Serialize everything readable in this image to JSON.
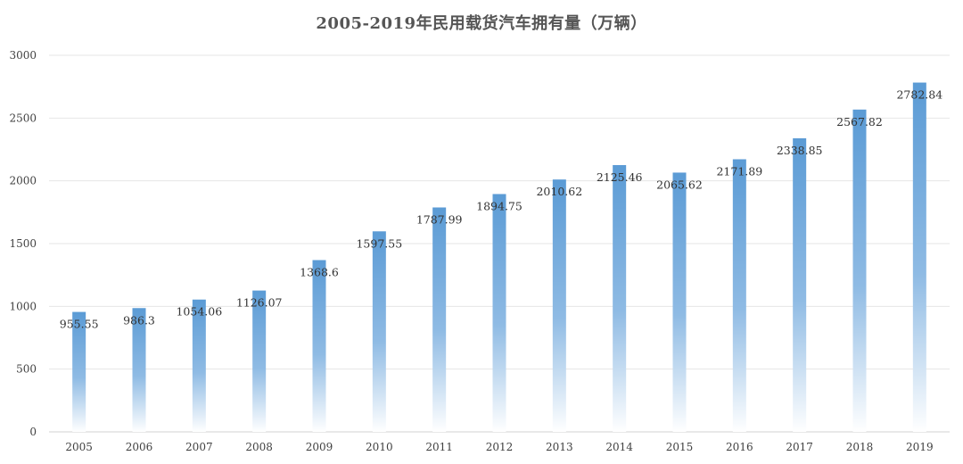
{
  "chart_data": {
    "type": "bar",
    "title": "2005-2019年民用载货汽车拥有量（万辆）",
    "categories": [
      "2005",
      "2006",
      "2007",
      "2008",
      "2009",
      "2010",
      "2011",
      "2012",
      "2013",
      "2014",
      "2015",
      "2016",
      "2017",
      "2018",
      "2019"
    ],
    "values": [
      955.55,
      986.3,
      1054.06,
      1126.07,
      1368.6,
      1597.55,
      1787.99,
      1894.75,
      2010.62,
      2125.46,
      2065.62,
      2171.89,
      2338.85,
      2567.82,
      2782.84
    ],
    "data_labels": [
      "955.55",
      "986.3",
      "1054.06",
      "1126.07",
      "1368.6",
      "1597.55",
      "1787.99",
      "1894.75",
      "2010.62",
      "2125.46",
      "2065.62",
      "2171.89",
      "2338.85",
      "2567.82",
      "2782.84"
    ],
    "ylim": [
      0,
      3000
    ],
    "yticks": [
      0,
      500,
      1000,
      1500,
      2000,
      2500,
      3000
    ],
    "grid": true,
    "bar_color_top": "#5b9bd5",
    "bar_color_bottom": "#ffffff",
    "grid_color": "#e6e6e6"
  }
}
